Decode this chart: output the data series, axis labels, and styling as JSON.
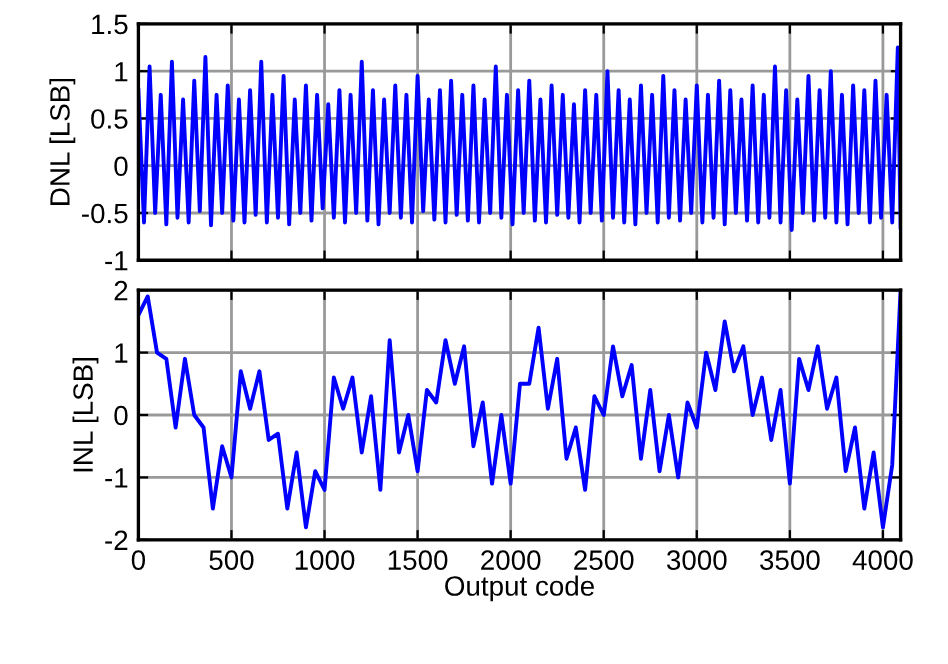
{
  "chart_data": [
    {
      "type": "line",
      "ylabel": "DNL [LSB]",
      "xlim": [
        0,
        4095
      ],
      "xticks": [
        0,
        500,
        1000,
        1500,
        2000,
        2500,
        3000,
        3500,
        4000
      ],
      "ylim": [
        -1,
        1.5
      ],
      "yticks": [
        -1,
        -0.5,
        0,
        0.5,
        1,
        1.5
      ],
      "grid": true,
      "tick_labels": "y",
      "series": [
        {
          "color": "#0000ff",
          "x": [
            0,
            30,
            60,
            90,
            120,
            150,
            180,
            210,
            240,
            270,
            300,
            330,
            360,
            390,
            420,
            450,
            480,
            510,
            540,
            570,
            600,
            630,
            660,
            690,
            720,
            750,
            780,
            810,
            840,
            870,
            900,
            930,
            960,
            990,
            1020,
            1050,
            1080,
            1110,
            1140,
            1170,
            1200,
            1230,
            1260,
            1290,
            1320,
            1350,
            1380,
            1410,
            1440,
            1470,
            1500,
            1530,
            1560,
            1590,
            1620,
            1650,
            1680,
            1710,
            1740,
            1770,
            1800,
            1830,
            1860,
            1890,
            1920,
            1950,
            1980,
            2010,
            2040,
            2070,
            2100,
            2130,
            2160,
            2190,
            2220,
            2250,
            2280,
            2310,
            2340,
            2370,
            2400,
            2430,
            2460,
            2490,
            2520,
            2550,
            2580,
            2610,
            2640,
            2670,
            2700,
            2730,
            2760,
            2790,
            2820,
            2850,
            2880,
            2910,
            2940,
            2970,
            3000,
            3030,
            3060,
            3090,
            3120,
            3150,
            3180,
            3210,
            3240,
            3270,
            3300,
            3330,
            3360,
            3390,
            3420,
            3450,
            3480,
            3510,
            3540,
            3570,
            3600,
            3630,
            3660,
            3690,
            3720,
            3750,
            3780,
            3810,
            3840,
            3870,
            3900,
            3930,
            3960,
            3990,
            4020,
            4050,
            4080,
            4095
          ],
          "values": [
            0.8,
            -0.6,
            1.05,
            -0.5,
            0.75,
            -0.62,
            1.1,
            -0.55,
            0.7,
            -0.6,
            0.9,
            -0.48,
            1.15,
            -0.63,
            0.75,
            -0.5,
            0.85,
            -0.58,
            0.7,
            -0.6,
            0.8,
            -0.52,
            1.1,
            -0.6,
            0.75,
            -0.55,
            0.95,
            -0.62,
            0.7,
            -0.5,
            0.85,
            -0.58,
            0.75,
            -0.45,
            0.65,
            -0.55,
            0.8,
            -0.6,
            0.75,
            -0.5,
            1.1,
            -0.58,
            0.8,
            -0.62,
            0.7,
            -0.5,
            0.85,
            -0.55,
            0.75,
            -0.6,
            0.95,
            -0.48,
            0.7,
            -0.57,
            0.8,
            -0.6,
            0.9,
            -0.52,
            0.75,
            -0.58,
            0.85,
            -0.6,
            0.7,
            -0.5,
            1.05,
            -0.55,
            0.75,
            -0.62,
            0.8,
            -0.5,
            0.9,
            -0.58,
            0.7,
            -0.6,
            0.85,
            -0.52,
            0.75,
            -0.55,
            0.65,
            -0.6,
            0.8,
            -0.5,
            0.75,
            -0.58,
            1.0,
            -0.55,
            0.8,
            -0.6,
            0.7,
            -0.62,
            0.85,
            -0.5,
            0.75,
            -0.6,
            0.95,
            -0.55,
            0.8,
            -0.58,
            0.7,
            -0.5,
            0.85,
            -0.6,
            0.75,
            -0.55,
            0.9,
            -0.62,
            0.8,
            -0.5,
            0.7,
            -0.58,
            0.85,
            -0.6,
            0.75,
            -0.55,
            1.05,
            -0.6,
            0.8,
            -0.68,
            0.7,
            -0.5,
            0.95,
            -0.58,
            0.8,
            -0.55,
            1.0,
            -0.6,
            0.75,
            -0.62,
            0.85,
            -0.5,
            0.8,
            -0.6,
            0.9,
            -0.55,
            0.75,
            -0.6,
            1.25,
            -0.65
          ]
        }
      ]
    },
    {
      "type": "line",
      "xlabel": "Output code",
      "ylabel": "INL [LSB]",
      "xlim": [
        0,
        4095
      ],
      "xticks": [
        0,
        500,
        1000,
        1500,
        2000,
        2500,
        3000,
        3500,
        4000
      ],
      "ylim": [
        -2,
        2
      ],
      "yticks": [
        -2,
        -1,
        0,
        1,
        2
      ],
      "grid": true,
      "series": [
        {
          "color": "#0000ff",
          "x": [
            0,
            50,
            100,
            150,
            200,
            250,
            300,
            350,
            400,
            450,
            500,
            550,
            600,
            650,
            700,
            750,
            800,
            850,
            900,
            950,
            1000,
            1050,
            1100,
            1150,
            1200,
            1250,
            1300,
            1350,
            1400,
            1450,
            1500,
            1550,
            1600,
            1650,
            1700,
            1750,
            1800,
            1850,
            1900,
            1950,
            2000,
            2050,
            2100,
            2150,
            2200,
            2250,
            2300,
            2350,
            2400,
            2450,
            2500,
            2550,
            2600,
            2650,
            2700,
            2750,
            2800,
            2850,
            2900,
            2950,
            3000,
            3050,
            3100,
            3150,
            3200,
            3250,
            3300,
            3350,
            3400,
            3450,
            3500,
            3550,
            3600,
            3650,
            3700,
            3750,
            3800,
            3850,
            3900,
            3950,
            4000,
            4050,
            4095
          ],
          "values": [
            1.6,
            1.9,
            1.0,
            0.9,
            -0.2,
            0.9,
            0.0,
            -0.2,
            -1.5,
            -0.5,
            -1.0,
            0.7,
            0.1,
            0.7,
            -0.4,
            -0.3,
            -1.5,
            -0.6,
            -1.8,
            -0.9,
            -1.2,
            0.6,
            0.1,
            0.6,
            -0.6,
            0.3,
            -1.2,
            1.2,
            -0.6,
            0.0,
            -0.9,
            0.4,
            0.2,
            1.2,
            0.5,
            1.1,
            -0.5,
            0.2,
            -1.1,
            0.0,
            -1.1,
            0.5,
            0.5,
            1.4,
            0.1,
            0.9,
            -0.7,
            -0.2,
            -1.2,
            0.3,
            0.0,
            1.1,
            0.3,
            0.8,
            -0.7,
            0.4,
            -0.9,
            0.0,
            -1.0,
            0.2,
            -0.2,
            1.0,
            0.4,
            1.5,
            0.7,
            1.1,
            0.0,
            0.6,
            -0.4,
            0.4,
            -1.1,
            0.9,
            0.4,
            1.1,
            0.1,
            0.6,
            -0.9,
            -0.2,
            -1.5,
            -0.6,
            -1.8,
            -0.8,
            2.0
          ]
        }
      ]
    }
  ]
}
